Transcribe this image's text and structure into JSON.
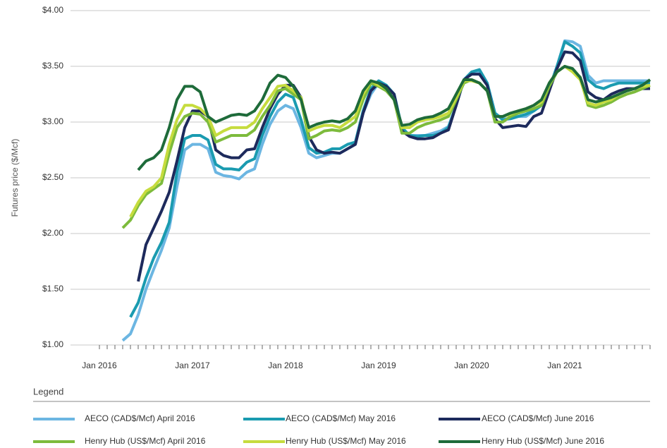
{
  "chart_data": {
    "type": "line",
    "y_label": "Futures price ($/Mcf)",
    "legend_title": "Legend",
    "ylim": [
      1,
      4
    ],
    "yticks": [
      {
        "value": 1,
        "label": "$1.00"
      },
      {
        "value": 1.5,
        "label": "$1.50"
      },
      {
        "value": 2,
        "label": "$2.00"
      },
      {
        "value": 2.5,
        "label": "$2.50"
      },
      {
        "value": 3,
        "label": "$3.00"
      },
      {
        "value": 3.5,
        "label": "$3.50"
      },
      {
        "value": 4,
        "label": "$4.00"
      }
    ],
    "grid": true,
    "categories": [
      "Jan 2016",
      null,
      null,
      null,
      null,
      null,
      null,
      null,
      null,
      null,
      null,
      null,
      "Jan 2017",
      null,
      null,
      null,
      null,
      null,
      null,
      null,
      null,
      null,
      null,
      null,
      "Jan 2018",
      null,
      null,
      null,
      null,
      null,
      null,
      null,
      null,
      null,
      null,
      null,
      "Jan 2019",
      null,
      null,
      null,
      null,
      null,
      null,
      null,
      null,
      null,
      null,
      null,
      "Jan 2020",
      null,
      null,
      null,
      null,
      null,
      null,
      null,
      null,
      null,
      null,
      null,
      "Jan 2021",
      null,
      null,
      null,
      null,
      null,
      null,
      null,
      null,
      null,
      null,
      null
    ],
    "series": [
      {
        "name": "AECO (CAD$/Mcf) April 2016",
        "color": "#6cb6e2",
        "values": [
          null,
          null,
          null,
          1.04,
          1.1,
          1.27,
          1.5,
          1.68,
          1.85,
          2.05,
          2.42,
          2.75,
          2.8,
          2.8,
          2.76,
          2.55,
          2.52,
          2.51,
          2.49,
          2.55,
          2.58,
          2.8,
          2.98,
          3.1,
          3.15,
          3.12,
          2.95,
          2.72,
          2.68,
          2.7,
          2.72,
          2.72,
          2.76,
          2.8,
          3.08,
          3.25,
          3.35,
          3.32,
          3.25,
          2.95,
          2.88,
          2.88,
          2.88,
          2.9,
          2.92,
          2.96,
          3.15,
          3.38,
          3.45,
          3.45,
          3.35,
          3.08,
          3.03,
          3.03,
          3.05,
          3.05,
          3.1,
          3.15,
          3.3,
          3.5,
          3.73,
          3.72,
          3.68,
          3.42,
          3.35,
          3.37,
          3.37,
          3.37,
          3.37,
          3.37,
          3.37,
          3.37
        ]
      },
      {
        "name": "AECO (CAD$/Mcf) May 2016",
        "color": "#1a9bb0",
        "values": [
          null,
          null,
          null,
          null,
          1.25,
          1.38,
          1.6,
          1.78,
          1.92,
          2.1,
          2.55,
          2.85,
          2.88,
          2.88,
          2.84,
          2.62,
          2.58,
          2.58,
          2.57,
          2.64,
          2.67,
          2.88,
          3.05,
          3.18,
          3.25,
          3.22,
          3.02,
          2.77,
          2.72,
          2.73,
          2.76,
          2.76,
          2.8,
          2.82,
          3.1,
          3.3,
          3.37,
          3.33,
          3.25,
          2.95,
          2.88,
          2.87,
          2.88,
          2.88,
          2.9,
          2.95,
          3.15,
          3.38,
          3.45,
          3.47,
          3.35,
          3.08,
          3.02,
          3.03,
          3.05,
          3.07,
          3.1,
          3.15,
          3.3,
          3.5,
          3.72,
          3.68,
          3.62,
          3.38,
          3.32,
          3.3,
          3.33,
          3.35,
          3.35,
          3.35,
          3.35,
          3.35
        ]
      },
      {
        "name": "AECO (CAD$/Mcf) June 2016",
        "color": "#1d2a5c",
        "values": [
          null,
          null,
          null,
          null,
          null,
          1.57,
          1.9,
          2.05,
          2.2,
          2.37,
          2.65,
          2.95,
          3.1,
          3.1,
          3.05,
          2.75,
          2.7,
          2.68,
          2.68,
          2.75,
          2.76,
          2.95,
          3.12,
          3.25,
          3.33,
          3.33,
          3.22,
          2.87,
          2.75,
          2.72,
          2.73,
          2.72,
          2.76,
          2.8,
          3.08,
          3.28,
          3.35,
          3.32,
          3.25,
          2.92,
          2.87,
          2.85,
          2.85,
          2.86,
          2.9,
          2.93,
          3.15,
          3.38,
          3.43,
          3.43,
          3.33,
          3.03,
          2.95,
          2.96,
          2.97,
          2.96,
          3.05,
          3.08,
          3.28,
          3.48,
          3.63,
          3.62,
          3.55,
          3.27,
          3.22,
          3.2,
          3.25,
          3.28,
          3.3,
          3.3,
          3.3,
          3.3
        ]
      },
      {
        "name": "Henry Hub (US$/Mcf) April 2016",
        "color": "#7dbb3c",
        "values": [
          null,
          null,
          null,
          2.05,
          2.12,
          2.25,
          2.35,
          2.4,
          2.45,
          2.72,
          2.95,
          3.05,
          3.08,
          3.07,
          3.0,
          2.82,
          2.85,
          2.88,
          2.88,
          2.88,
          2.93,
          3.05,
          3.15,
          3.28,
          3.3,
          3.25,
          3.2,
          2.85,
          2.88,
          2.92,
          2.93,
          2.92,
          2.95,
          3.0,
          3.2,
          3.35,
          3.32,
          3.28,
          3.2,
          2.9,
          2.9,
          2.95,
          2.98,
          3.0,
          3.02,
          3.05,
          3.2,
          3.35,
          3.38,
          3.35,
          3.28,
          3.0,
          3.0,
          3.05,
          3.08,
          3.1,
          3.12,
          3.15,
          3.32,
          3.45,
          3.5,
          3.47,
          3.4,
          3.15,
          3.13,
          3.15,
          3.18,
          3.22,
          3.25,
          3.27,
          3.3,
          3.33
        ]
      },
      {
        "name": "Henry Hub (US$/Mcf) May 2016",
        "color": "#c6dc3e",
        "values": [
          null,
          null,
          null,
          null,
          2.15,
          2.28,
          2.38,
          2.42,
          2.5,
          2.8,
          3.02,
          3.15,
          3.15,
          3.12,
          3.05,
          2.88,
          2.92,
          2.95,
          2.95,
          2.95,
          3.0,
          3.12,
          3.22,
          3.32,
          3.33,
          3.28,
          3.22,
          2.92,
          2.95,
          2.97,
          2.97,
          2.95,
          3.0,
          3.05,
          3.25,
          3.37,
          3.33,
          3.3,
          3.2,
          2.95,
          2.95,
          3.0,
          3.02,
          3.03,
          3.05,
          3.08,
          3.22,
          3.37,
          3.37,
          3.35,
          3.28,
          3.05,
          3.05,
          3.07,
          3.1,
          3.12,
          3.15,
          3.18,
          3.35,
          3.45,
          3.5,
          3.45,
          3.38,
          3.17,
          3.15,
          3.18,
          3.2,
          3.25,
          3.28,
          3.3,
          3.32,
          3.33
        ]
      },
      {
        "name": "Henry Hub (US$/Mcf) June 2016",
        "color": "#1e6b3a",
        "values": [
          null,
          null,
          null,
          null,
          null,
          2.57,
          2.65,
          2.68,
          2.75,
          2.95,
          3.2,
          3.32,
          3.32,
          3.27,
          3.05,
          3.0,
          3.03,
          3.06,
          3.07,
          3.06,
          3.1,
          3.2,
          3.35,
          3.42,
          3.4,
          3.32,
          3.2,
          2.95,
          2.98,
          3.0,
          3.01,
          3.0,
          3.03,
          3.1,
          3.28,
          3.37,
          3.35,
          3.3,
          3.2,
          2.97,
          2.98,
          3.02,
          3.04,
          3.05,
          3.08,
          3.12,
          3.25,
          3.38,
          3.38,
          3.35,
          3.28,
          3.05,
          3.05,
          3.08,
          3.1,
          3.12,
          3.15,
          3.2,
          3.35,
          3.45,
          3.5,
          3.48,
          3.4,
          3.2,
          3.18,
          3.2,
          3.22,
          3.25,
          3.28,
          3.3,
          3.33,
          3.38
        ]
      }
    ]
  }
}
